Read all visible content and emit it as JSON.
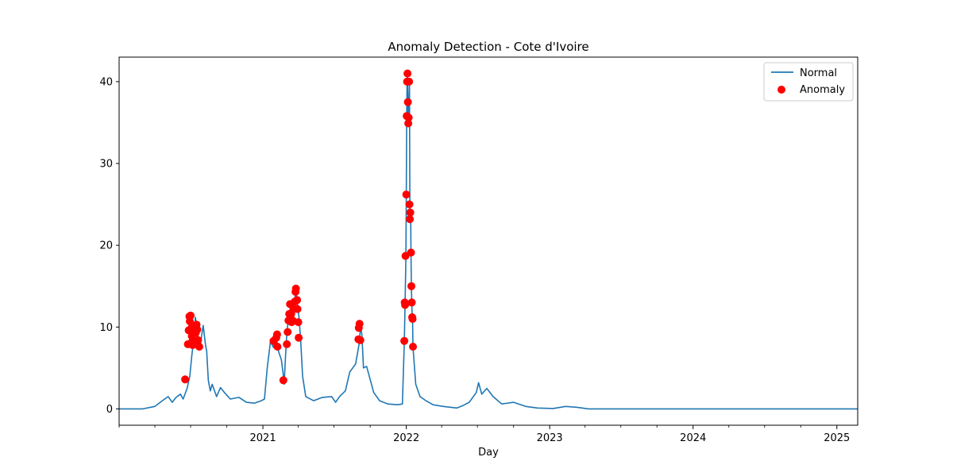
{
  "chart_data": {
    "type": "line",
    "title": "Anomaly Detection - Cote d'Ivoire",
    "xlabel": "Day",
    "ylabel": "",
    "xlim": [
      "2020-01-01",
      "2025-02-23"
    ],
    "ylim": [
      -2,
      43
    ],
    "x_ticks": [
      "2021",
      "2022",
      "2023",
      "2024",
      "2025"
    ],
    "y_ticks": [
      0,
      10,
      20,
      30,
      40
    ],
    "grid": false,
    "legend_position": "top-right",
    "colors": {
      "normal": "#1f77b4",
      "anomaly": "#ff0000"
    },
    "series": [
      {
        "name": "Normal",
        "kind": "line",
        "points": [
          [
            "2020-01-01",
            0
          ],
          [
            "2020-03-01",
            0
          ],
          [
            "2020-04-01",
            0.3
          ],
          [
            "2020-04-20",
            1.0
          ],
          [
            "2020-05-05",
            1.5
          ],
          [
            "2020-05-15",
            0.8
          ],
          [
            "2020-05-25",
            1.4
          ],
          [
            "2020-06-05",
            1.8
          ],
          [
            "2020-06-12",
            1.2
          ],
          [
            "2020-06-22",
            2.5
          ],
          [
            "2020-06-29",
            4.0
          ],
          [
            "2020-07-04",
            6.5
          ],
          [
            "2020-07-09",
            8.5
          ],
          [
            "2020-07-13",
            11.2
          ],
          [
            "2020-07-17",
            10.0
          ],
          [
            "2020-07-21",
            8.0
          ],
          [
            "2020-07-25",
            7.5
          ],
          [
            "2020-07-29",
            9.0
          ],
          [
            "2020-08-02",
            10.2
          ],
          [
            "2020-08-05",
            9.0
          ],
          [
            "2020-08-08",
            7.8
          ],
          [
            "2020-08-11",
            7.0
          ],
          [
            "2020-08-15",
            3.5
          ],
          [
            "2020-08-20",
            2.2
          ],
          [
            "2020-08-25",
            3.0
          ],
          [
            "2020-09-05",
            1.5
          ],
          [
            "2020-09-15",
            2.6
          ],
          [
            "2020-09-25",
            2.0
          ],
          [
            "2020-10-10",
            1.2
          ],
          [
            "2020-11-01",
            1.4
          ],
          [
            "2020-11-20",
            0.8
          ],
          [
            "2020-12-10",
            0.7
          ],
          [
            "2020-12-28",
            1.0
          ],
          [
            "2021-01-05",
            1.2
          ],
          [
            "2021-01-12",
            5.0
          ],
          [
            "2021-01-20",
            8.2
          ],
          [
            "2021-01-28",
            7.5
          ],
          [
            "2021-02-03",
            9.0
          ],
          [
            "2021-02-10",
            7.0
          ],
          [
            "2021-02-17",
            6.0
          ],
          [
            "2021-02-21",
            4.5
          ],
          [
            "2021-02-24",
            3.0
          ],
          [
            "2021-02-27",
            6.0
          ],
          [
            "2021-03-03",
            9.3
          ],
          [
            "2021-03-08",
            11.5
          ],
          [
            "2021-03-13",
            12.6
          ],
          [
            "2021-03-18",
            10.8
          ],
          [
            "2021-03-23",
            13.2
          ],
          [
            "2021-03-26",
            14.6
          ],
          [
            "2021-03-30",
            13.0
          ],
          [
            "2021-04-03",
            11.0
          ],
          [
            "2021-04-07",
            8.6
          ],
          [
            "2021-04-12",
            4.0
          ],
          [
            "2021-04-20",
            1.5
          ],
          [
            "2021-05-10",
            1.0
          ],
          [
            "2021-06-01",
            1.4
          ],
          [
            "2021-06-25",
            1.5
          ],
          [
            "2021-07-05",
            0.8
          ],
          [
            "2021-07-15",
            1.5
          ],
          [
            "2021-07-30",
            2.2
          ],
          [
            "2021-08-10",
            4.5
          ],
          [
            "2021-08-25",
            5.5
          ],
          [
            "2021-09-03",
            8.0
          ],
          [
            "2021-09-07",
            10.3
          ],
          [
            "2021-09-10",
            9.0
          ],
          [
            "2021-09-14",
            5.0
          ],
          [
            "2021-09-22",
            5.2
          ],
          [
            "2021-10-10",
            2.0
          ],
          [
            "2021-10-25",
            1.0
          ],
          [
            "2021-11-15",
            0.6
          ],
          [
            "2021-12-10",
            0.5
          ],
          [
            "2021-12-22",
            0.6
          ],
          [
            "2021-12-27",
            8.2
          ],
          [
            "2021-12-29",
            13.0
          ],
          [
            "2021-12-31",
            18.6
          ],
          [
            "2022-01-01",
            26.2
          ],
          [
            "2022-01-02",
            35.8
          ],
          [
            "2022-01-03",
            40.0
          ],
          [
            "2022-01-04",
            41.0
          ],
          [
            "2022-01-05",
            37.5
          ],
          [
            "2022-01-06",
            34.8
          ],
          [
            "2022-01-07",
            35.5
          ],
          [
            "2022-01-09",
            40.0
          ],
          [
            "2022-01-10",
            25.0
          ],
          [
            "2022-01-11",
            23.2
          ],
          [
            "2022-01-12",
            24.0
          ],
          [
            "2022-01-13",
            19.0
          ],
          [
            "2022-01-14",
            15.0
          ],
          [
            "2022-01-15",
            13.0
          ],
          [
            "2022-01-16",
            11.2
          ],
          [
            "2022-01-17",
            11.0
          ],
          [
            "2022-01-18",
            7.6
          ],
          [
            "2022-01-25",
            3.0
          ],
          [
            "2022-02-05",
            1.5
          ],
          [
            "2022-02-20",
            1.0
          ],
          [
            "2022-03-10",
            0.5
          ],
          [
            "2022-04-05",
            0.3
          ],
          [
            "2022-05-10",
            0.1
          ],
          [
            "2022-05-25",
            0.4
          ],
          [
            "2022-06-10",
            0.8
          ],
          [
            "2022-06-28",
            2.0
          ],
          [
            "2022-07-04",
            3.2
          ],
          [
            "2022-07-12",
            1.8
          ],
          [
            "2022-07-25",
            2.5
          ],
          [
            "2022-08-10",
            1.5
          ],
          [
            "2022-09-01",
            0.6
          ],
          [
            "2022-10-01",
            0.8
          ],
          [
            "2022-11-01",
            0.3
          ],
          [
            "2022-12-01",
            0.1
          ],
          [
            "2023-01-10",
            0.05
          ],
          [
            "2023-02-10",
            0.3
          ],
          [
            "2023-03-10",
            0.2
          ],
          [
            "2023-04-10",
            0.0
          ],
          [
            "2025-02-23",
            0.0
          ]
        ]
      },
      {
        "name": "Anomaly",
        "kind": "scatter",
        "points": [
          [
            "2020-06-17",
            3.6
          ],
          [
            "2020-06-24",
            7.9
          ],
          [
            "2020-06-26",
            9.6
          ],
          [
            "2020-06-28",
            11.3
          ],
          [
            "2020-06-29",
            10.7
          ],
          [
            "2020-07-01",
            11.4
          ],
          [
            "2020-07-03",
            9.9
          ],
          [
            "2020-07-04",
            8.9
          ],
          [
            "2020-07-05",
            8.2
          ],
          [
            "2020-07-06",
            7.8
          ],
          [
            "2020-07-10",
            8.3
          ],
          [
            "2020-07-14",
            9.3
          ],
          [
            "2020-07-16",
            10.3
          ],
          [
            "2020-07-18",
            9.7
          ],
          [
            "2020-07-20",
            8.4
          ],
          [
            "2020-07-23",
            7.6
          ],
          [
            "2021-01-28",
            8.3
          ],
          [
            "2021-02-04",
            8.7
          ],
          [
            "2021-02-06",
            9.1
          ],
          [
            "2021-02-07",
            7.6
          ],
          [
            "2021-02-22",
            3.5
          ],
          [
            "2021-03-03",
            7.9
          ],
          [
            "2021-03-05",
            9.4
          ],
          [
            "2021-03-07",
            10.8
          ],
          [
            "2021-03-09",
            11.6
          ],
          [
            "2021-03-11",
            12.8
          ],
          [
            "2021-03-14",
            11.6
          ],
          [
            "2021-03-15",
            10.6
          ],
          [
            "2021-03-18",
            10.8
          ],
          [
            "2021-03-20",
            12.2
          ],
          [
            "2021-03-23",
            13.1
          ],
          [
            "2021-03-25",
            14.3
          ],
          [
            "2021-03-26",
            14.7
          ],
          [
            "2021-03-29",
            13.3
          ],
          [
            "2021-03-30",
            12.2
          ],
          [
            "2021-04-01",
            10.6
          ],
          [
            "2021-04-02",
            8.7
          ],
          [
            "2021-09-01",
            8.5
          ],
          [
            "2021-09-02",
            9.9
          ],
          [
            "2021-09-04",
            10.4
          ],
          [
            "2021-09-06",
            8.4
          ],
          [
            "2021-12-27",
            8.3
          ],
          [
            "2021-12-28",
            13.0
          ],
          [
            "2021-12-29",
            12.7
          ],
          [
            "2021-12-30",
            18.7
          ],
          [
            "2022-01-01",
            26.2
          ],
          [
            "2022-01-02",
            35.8
          ],
          [
            "2022-01-03",
            40.0
          ],
          [
            "2022-01-04",
            41.0
          ],
          [
            "2022-01-05",
            37.5
          ],
          [
            "2022-01-06",
            34.9
          ],
          [
            "2022-01-07",
            35.6
          ],
          [
            "2022-01-08",
            40.0
          ],
          [
            "2022-01-09",
            25.0
          ],
          [
            "2022-01-10",
            23.2
          ],
          [
            "2022-01-11",
            24.0
          ],
          [
            "2022-01-13",
            19.1
          ],
          [
            "2022-01-14",
            15.0
          ],
          [
            "2022-01-15",
            13.0
          ],
          [
            "2022-01-16",
            11.2
          ],
          [
            "2022-01-17",
            11.0
          ],
          [
            "2022-01-18",
            7.6
          ]
        ]
      }
    ]
  }
}
